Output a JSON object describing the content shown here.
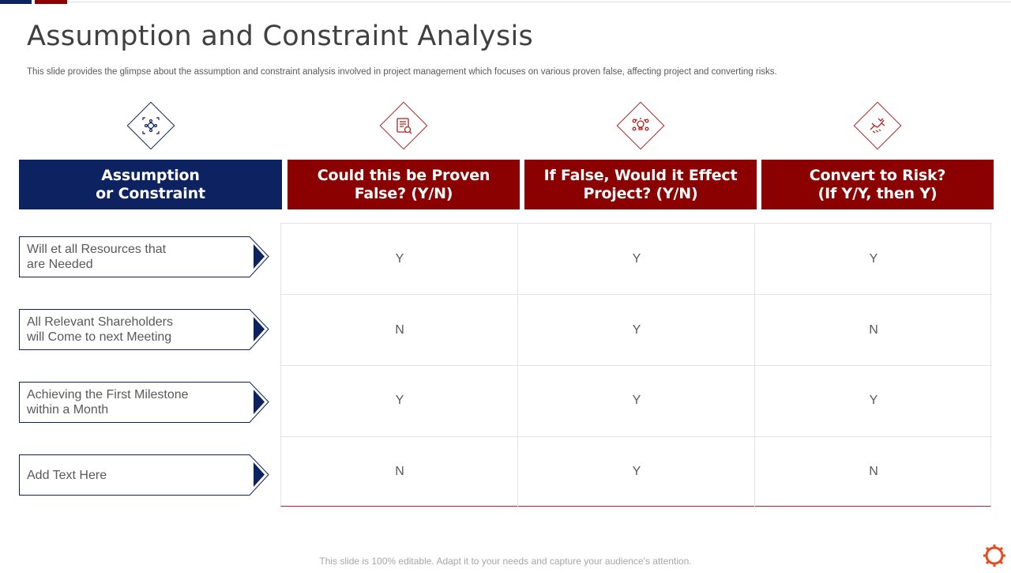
{
  "title": "Assumption and Constraint Analysis",
  "subtitle": "This slide provides the glimpse about the assumption and constraint analysis involved in project management which focuses on various proven false, affecting project and converting risks.",
  "colors": {
    "navy": "#0d2260",
    "maroon": "#8b0000",
    "text": "#404040"
  },
  "icons": [
    "focus-target-icon",
    "document-icon",
    "idea-team-icon",
    "handshake-icon"
  ],
  "headers": [
    "Assumption\nor Constraint",
    "Could this be Proven\nFalse? (Y/N)",
    "If False, Would it Effect\nProject? (Y/N)",
    "Convert to Risk?\n(If Y/Y, then Y)"
  ],
  "rows": [
    {
      "label": "Will et all Resources that\nare Needed",
      "values": [
        "Y",
        "Y",
        "Y"
      ]
    },
    {
      "label": "All Relevant Shareholders\nwill Come to next Meeting",
      "values": [
        "N",
        "Y",
        "N"
      ]
    },
    {
      "label": "Achieving the First Milestone\nwithin a Month",
      "values": [
        "Y",
        "Y",
        "Y"
      ]
    },
    {
      "label": "Add Text Here",
      "values": [
        "N",
        "Y",
        "N"
      ]
    }
  ],
  "footer": "This slide is 100% editable. Adapt it to your needs and capture your audience's attention."
}
